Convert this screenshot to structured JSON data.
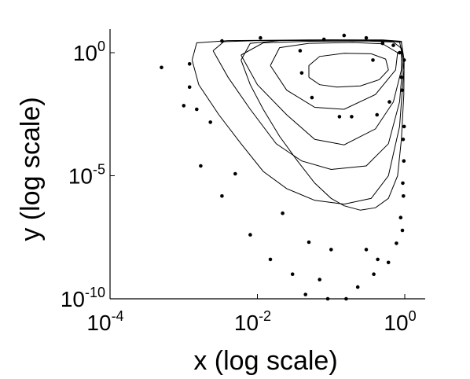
{
  "chart_data": {
    "type": "scatter",
    "xlabel": "x (log scale)",
    "ylabel": "y (log scale)",
    "x_scale": "log",
    "y_scale": "log",
    "xlim": [
      0.0001,
      3
    ],
    "ylim": [
      1e-10,
      10
    ],
    "grid": false,
    "legend": "none",
    "x_ticks": [
      {
        "base": "10",
        "exp": "-4",
        "value": 0.0001
      },
      {
        "base": "10",
        "exp": "-2",
        "value": 0.01
      },
      {
        "base": "10",
        "exp": "0",
        "value": 1
      }
    ],
    "y_ticks": [
      {
        "base": "10",
        "exp": "-10",
        "value": 1e-10
      },
      {
        "base": "10",
        "exp": "-5",
        "value": 1e-05
      },
      {
        "base": "10",
        "exp": "0",
        "value": 1
      }
    ],
    "contours": [
      [
        [
          0.05,
          0.1
        ],
        [
          0.07,
          0.05
        ],
        [
          0.12,
          0.04
        ],
        [
          0.25,
          0.045
        ],
        [
          0.45,
          0.08
        ],
        [
          0.6,
          0.2
        ],
        [
          0.55,
          0.55
        ],
        [
          0.35,
          0.9
        ],
        [
          0.15,
          0.95
        ],
        [
          0.07,
          0.7
        ],
        [
          0.05,
          0.3
        ],
        [
          0.05,
          0.1
        ]
      ],
      [
        [
          0.015,
          0.3
        ],
        [
          0.025,
          0.03
        ],
        [
          0.06,
          0.006
        ],
        [
          0.15,
          0.005
        ],
        [
          0.4,
          0.02
        ],
        [
          0.75,
          0.2
        ],
        [
          0.8,
          1.0
        ],
        [
          0.5,
          2.3
        ],
        [
          0.2,
          2.6
        ],
        [
          0.05,
          2.4
        ],
        [
          0.02,
          1.6
        ],
        [
          0.015,
          0.3
        ]
      ],
      [
        [
          0.006,
          0.8
        ],
        [
          0.01,
          0.05
        ],
        [
          0.025,
          0.003
        ],
        [
          0.06,
          0.0003
        ],
        [
          0.15,
          0.00018
        ],
        [
          0.4,
          0.0008
        ],
        [
          0.7,
          0.01
        ],
        [
          0.9,
          0.2
        ],
        [
          0.9,
          1.5
        ],
        [
          0.7,
          2.7
        ],
        [
          0.3,
          3.0
        ],
        [
          0.05,
          2.9
        ],
        [
          0.012,
          2.5
        ],
        [
          0.006,
          0.8
        ]
      ],
      [
        [
          0.0025,
          1.2
        ],
        [
          0.004,
          0.1
        ],
        [
          0.008,
          0.005
        ],
        [
          0.018,
          0.0002
        ],
        [
          0.04,
          4e-05
        ],
        [
          0.1,
          1.8e-05
        ],
        [
          0.3,
          2.5e-05
        ],
        [
          0.6,
          0.0002
        ],
        [
          0.85,
          0.01
        ],
        [
          0.95,
          0.5
        ],
        [
          0.85,
          2.8
        ],
        [
          0.3,
          3.2
        ],
        [
          0.01,
          3.1
        ],
        [
          0.0035,
          2.8
        ],
        [
          0.0025,
          1.2
        ]
      ],
      [
        [
          0.0013,
          0.5
        ],
        [
          0.0016,
          0.05
        ],
        [
          0.003,
          0.003
        ],
        [
          0.006,
          0.0002
        ],
        [
          0.012,
          1.5e-05
        ],
        [
          0.025,
          3e-06
        ],
        [
          0.06,
          1e-06
        ],
        [
          0.15,
          7e-07
        ],
        [
          0.35,
          1.2e-06
        ],
        [
          0.6,
          1e-05
        ],
        [
          0.85,
          0.001
        ],
        [
          0.97,
          0.2
        ],
        [
          0.9,
          2.9
        ],
        [
          0.5,
          3.3
        ],
        [
          0.05,
          3.3
        ],
        [
          0.004,
          3.1
        ],
        [
          0.0015,
          2.5
        ],
        [
          0.0013,
          0.5
        ]
      ],
      [
        [
          0.006,
          0.5
        ],
        [
          0.008,
          0.05
        ],
        [
          0.012,
          0.005
        ],
        [
          0.02,
          0.0004
        ],
        [
          0.035,
          4e-05
        ],
        [
          0.06,
          5e-06
        ],
        [
          0.1,
          1.2e-06
        ],
        [
          0.15,
          6e-07
        ],
        [
          0.25,
          4e-07
        ],
        [
          0.4,
          5e-07
        ],
        [
          0.6,
          1.2e-06
        ],
        [
          0.8,
          1e-05
        ],
        [
          0.9,
          0.0003
        ],
        [
          0.97,
          0.02
        ],
        [
          0.98,
          0.5
        ],
        [
          0.9,
          2.6
        ],
        [
          0.5,
          3.2
        ],
        [
          0.1,
          3.3
        ],
        [
          0.02,
          3.1
        ],
        [
          0.008,
          2.4
        ],
        [
          0.006,
          0.5
        ]
      ]
    ],
    "points": [
      [
        0.0005,
        0.25
      ],
      [
        0.001,
        0.007
      ],
      [
        0.0012,
        0.35
      ],
      [
        0.0012,
        0.04
      ],
      [
        0.0015,
        0.005
      ],
      [
        0.0017,
        2.5e-05
      ],
      [
        0.0023,
        0.0015
      ],
      [
        0.0033,
        1.5e-06
      ],
      [
        0.0033,
        3.0
      ],
      [
        0.005,
        1.2e-05
      ],
      [
        0.008,
        4e-08
      ],
      [
        0.011,
        4.0
      ],
      [
        0.015,
        4e-09
      ],
      [
        0.022,
        3e-07
      ],
      [
        0.03,
        1e-09
      ],
      [
        0.038,
        1.2
      ],
      [
        0.04,
        0.15
      ],
      [
        0.045,
        1.5e-10
      ],
      [
        0.05,
        2e-08
      ],
      [
        0.055,
        0.015
      ],
      [
        0.07,
        6e-10
      ],
      [
        0.08,
        3.5
      ],
      [
        0.09,
        1e-10
      ],
      [
        0.1,
        1e-08
      ],
      [
        0.13,
        0.0025
      ],
      [
        0.15,
        5.0
      ],
      [
        0.16,
        1e-10
      ],
      [
        0.19,
        0.0025
      ],
      [
        0.23,
        3e-10
      ],
      [
        0.3,
        1e-08
      ],
      [
        0.3,
        4.0
      ],
      [
        0.37,
        0.5
      ],
      [
        0.38,
        1e-09
      ],
      [
        0.42,
        0.003
      ],
      [
        0.43,
        4e-09
      ],
      [
        0.5,
        2.4
      ],
      [
        0.6,
        3e-09
      ],
      [
        0.62,
        0.01
      ],
      [
        0.7,
        2.0
      ],
      [
        0.77,
        1.8e-08
      ],
      [
        0.85,
        1.0
      ],
      [
        0.88,
        2e-07
      ],
      [
        0.9,
        0.1
      ],
      [
        0.92,
        0.03
      ],
      [
        0.93,
        6e-08
      ],
      [
        0.94,
        5e-06
      ],
      [
        0.95,
        0.0003
      ],
      [
        0.96,
        1.5e-06
      ],
      [
        0.97,
        4e-05
      ],
      [
        0.98,
        0.5
      ],
      [
        0.98,
        0.001
      ]
    ]
  }
}
